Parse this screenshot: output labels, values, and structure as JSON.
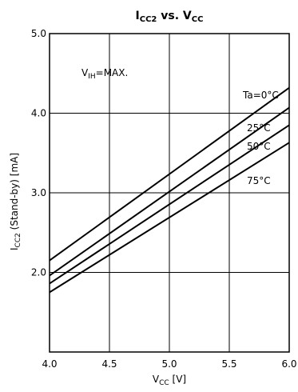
{
  "chart_data": {
    "type": "line",
    "title": {
      "main": "I",
      "sub": "CC2",
      "rest1": " vs. V",
      "sub2": "CC"
    },
    "xlabel": {
      "main": "V",
      "sub": "CC",
      "rest": " [V]"
    },
    "ylabel": {
      "main": "I",
      "sub": "CC2",
      "rest": " (Stand-by) [mA]"
    },
    "annotation": {
      "main": "V",
      "sub": "IH",
      "rest": "=MAX."
    },
    "xlim": [
      4.0,
      6.0
    ],
    "ylim": [
      1.0,
      5.0
    ],
    "xticks": [
      "4.0",
      "4.5",
      "5.0",
      "5.5",
      "6.0"
    ],
    "yticks": [
      "2.0",
      "3.0",
      "4.0",
      "5.0"
    ],
    "grid": true,
    "x": [
      4.0,
      6.0
    ],
    "series": [
      {
        "name": "Ta=0°C",
        "values": [
          2.15,
          4.32
        ]
      },
      {
        "name": "25°C",
        "values": [
          1.96,
          4.07
        ]
      },
      {
        "name": "50°C",
        "values": [
          1.86,
          3.85
        ]
      },
      {
        "name": "75°C",
        "values": [
          1.75,
          3.63
        ]
      }
    ]
  }
}
